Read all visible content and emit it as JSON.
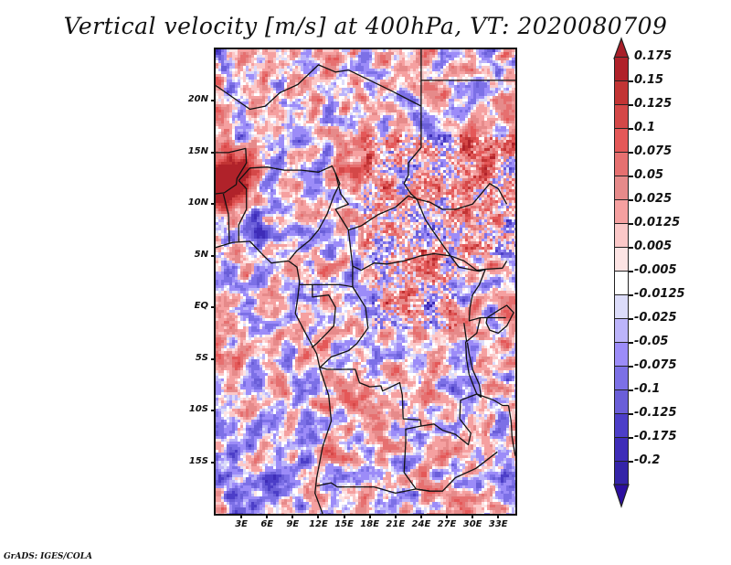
{
  "title": "Vertical velocity [m/s] at 400hPa, VT: 2020080709",
  "footer": "GrADS: IGES/COLA",
  "chart_data": {
    "type": "heatmap",
    "title": "Vertical velocity [m/s] at 400hPa, VT: 2020080709",
    "variable": "Vertical velocity",
    "units": "m/s",
    "level": "400hPa",
    "valid_time": "2020080709",
    "xlabel": "",
    "ylabel": "",
    "lon_range": [
      0,
      35
    ],
    "lat_range": [
      -20,
      25
    ],
    "lat_ticks": [
      {
        "value": 20,
        "label": "20N"
      },
      {
        "value": 15,
        "label": "15N"
      },
      {
        "value": 10,
        "label": "10N"
      },
      {
        "value": 5,
        "label": "5N"
      },
      {
        "value": 0,
        "label": "EQ"
      },
      {
        "value": -5,
        "label": "5S"
      },
      {
        "value": -10,
        "label": "10S"
      },
      {
        "value": -15,
        "label": "15S"
      }
    ],
    "lon_ticks": [
      {
        "value": 3,
        "label": "3E"
      },
      {
        "value": 6,
        "label": "6E"
      },
      {
        "value": 9,
        "label": "9E"
      },
      {
        "value": 12,
        "label": "12E"
      },
      {
        "value": 15,
        "label": "15E"
      },
      {
        "value": 18,
        "label": "18E"
      },
      {
        "value": 21,
        "label": "21E"
      },
      {
        "value": 24,
        "label": "24E"
      },
      {
        "value": 27,
        "label": "27E"
      },
      {
        "value": 30,
        "label": "30E"
      },
      {
        "value": 33,
        "label": "33E"
      }
    ],
    "colorbar": {
      "orientation": "vertical",
      "placement": "right",
      "extend": "both",
      "levels": [
        {
          "label": "0.175",
          "color": "#b0222a"
        },
        {
          "label": "0.15",
          "color": "#c23434"
        },
        {
          "label": "0.125",
          "color": "#d44848"
        },
        {
          "label": "0.1",
          "color": "#e45858"
        },
        {
          "label": "0.075",
          "color": "#e67070"
        },
        {
          "label": "0.05",
          "color": "#e68a8a"
        },
        {
          "label": "0.025",
          "color": "#f5a0a0"
        },
        {
          "label": "0.0125",
          "color": "#fbc8c8"
        },
        {
          "label": "0.005",
          "color": "#fde4e4"
        },
        {
          "label": "-0.005",
          "color": "#ffffff"
        },
        {
          "label": "-0.0125",
          "color": "#dcdcfa"
        },
        {
          "label": "-0.025",
          "color": "#bcb4fa"
        },
        {
          "label": "-0.05",
          "color": "#9c8cf8"
        },
        {
          "label": "-0.075",
          "color": "#7c70e6"
        },
        {
          "label": "-0.1",
          "color": "#6a5ed8"
        },
        {
          "label": "-0.125",
          "color": "#4c3ec8"
        },
        {
          "label": "-0.175",
          "color": "#3e2cb8"
        },
        {
          "label": "-0.2",
          "color": "#3424a8"
        }
      ],
      "top_arrow_color": "#a81e28",
      "bottom_arrow_color": "#2c0fa0"
    },
    "notable_features": [
      {
        "description": "Strong ascent (dark red) over southern Mali / Burkina Faso region near 11-14N, 0-3E"
      },
      {
        "description": "Scattered positive (red) cells over Chad and Sudan 8-17N, 18-33E"
      },
      {
        "description": "Mixed weak positive/negative streaks over Central Africa and Angola"
      }
    ]
  }
}
